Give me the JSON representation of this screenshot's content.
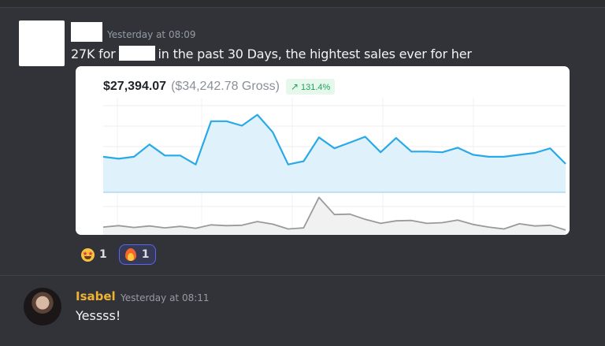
{
  "message1": {
    "timestamp": "Yesterday at 08:09",
    "text_before": "27K for",
    "text_after": "in the past 30 Days, the hightest sales ever for her"
  },
  "sales_card": {
    "net": "$27,394.07",
    "gross": "($34,242.78 Gross)",
    "change": "131.4%",
    "change_icon": "arrow-up-right-icon",
    "colors": {
      "line": "#29a9e8",
      "fill": "#dff1fb",
      "secondary": "#9a9a9a",
      "badge_bg": "#e6f7ec",
      "badge_text": "#1ea35a"
    }
  },
  "chart_data": {
    "type": "area",
    "title": "",
    "series": [
      {
        "values": [
          55,
          52,
          55,
          74,
          57,
          57,
          43,
          110,
          110,
          103,
          120,
          93,
          43,
          48,
          85,
          68,
          77,
          86,
          62,
          84,
          63,
          63,
          62,
          69,
          58,
          55,
          55,
          58,
          61,
          68,
          44
        ]
      },
      {
        "values": [
          38,
          42,
          37,
          41,
          36,
          40,
          35,
          44,
          42,
          43,
          53,
          46,
          33,
          36,
          118,
          72,
          73,
          59,
          48,
          55,
          56,
          48,
          50,
          57,
          45,
          38,
          33,
          47,
          41,
          43,
          30
        ]
      }
    ],
    "grid": true
  },
  "reactions": [
    {
      "icon": "star-struck-emoji-icon",
      "count": "1",
      "active": false
    },
    {
      "icon": "fire-emoji-icon",
      "count": "1",
      "active": true
    }
  ],
  "message2": {
    "author": "Isabel",
    "timestamp": "Yesterday at 08:11",
    "text": "Yessss!",
    "author_color": "#f0b232"
  }
}
